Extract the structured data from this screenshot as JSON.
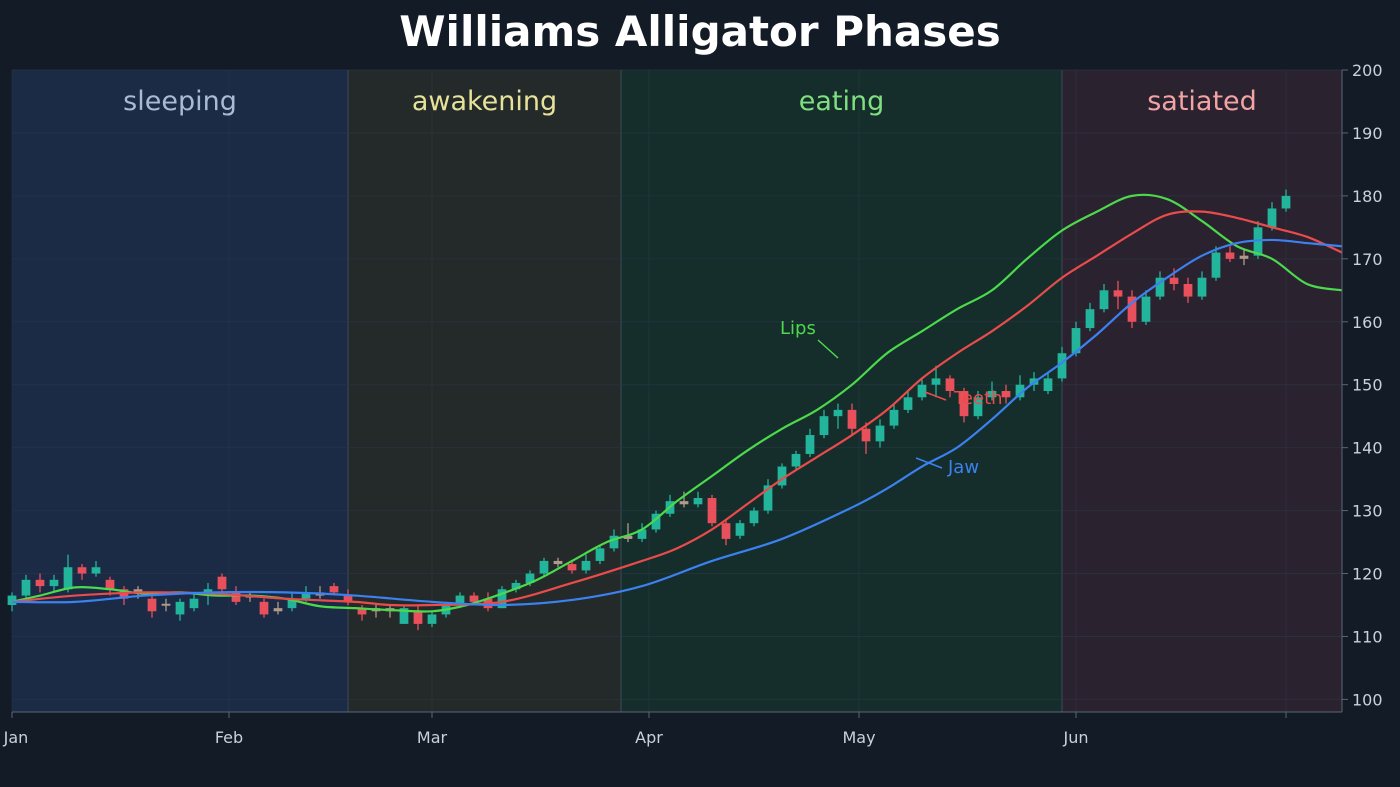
{
  "chart_data": {
    "type": "candlestick",
    "title": "Williams Alligator Phases",
    "xlabel": "",
    "ylabel": "",
    "ylim": [
      98,
      200
    ],
    "y_ticks": [
      100,
      110,
      120,
      130,
      140,
      150,
      160,
      170,
      180,
      190,
      200
    ],
    "x_range": [
      "2024-01-01",
      "2024-07-09"
    ],
    "x_ticks": [
      {
        "date": "2024-01-01",
        "label": "Jan"
      },
      {
        "date": "2024-02-01",
        "label": "Feb"
      },
      {
        "date": "2024-03-01",
        "label": "Mar"
      },
      {
        "date": "2024-04-01",
        "label": "Apr"
      },
      {
        "date": "2024-05-01",
        "label": "May"
      },
      {
        "date": "2024-06-01",
        "label": "Jun"
      },
      {
        "date": "2024-07-01",
        "label": ""
      }
    ],
    "grid": true,
    "phases": [
      {
        "label": "sleeping",
        "start": "2024-01-01",
        "end": "2024-02-18",
        "fill": "#1b2a45",
        "text_color": "#a9bad6"
      },
      {
        "label": "awakening",
        "start": "2024-02-18",
        "end": "2024-03-28",
        "fill": "#242a2a",
        "text_color": "#e6e29a"
      },
      {
        "label": "eating",
        "start": "2024-03-28",
        "end": "2024-05-30",
        "fill": "#152d2b",
        "text_color": "#7fe07f"
      },
      {
        "label": "satiated",
        "start": "2024-05-30",
        "end": "2024-07-09",
        "fill": "#2b2230",
        "text_color": "#f2a3a3"
      }
    ],
    "series": [
      {
        "name": "Lips",
        "color": "#4cd94c",
        "points": [
          [
            "2024-01-01",
            115.5
          ],
          [
            "2024-01-05",
            116.5
          ],
          [
            "2024-01-10",
            117.8
          ],
          [
            "2024-01-15",
            117.5
          ],
          [
            "2024-01-20",
            116.8
          ],
          [
            "2024-01-25",
            117.0
          ],
          [
            "2024-01-30",
            116.5
          ],
          [
            "2024-02-04",
            116.5
          ],
          [
            "2024-02-09",
            116.0
          ],
          [
            "2024-02-14",
            114.8
          ],
          [
            "2024-02-19",
            114.5
          ],
          [
            "2024-02-24",
            114.2
          ],
          [
            "2024-03-01",
            114.0
          ],
          [
            "2024-03-06",
            115.0
          ],
          [
            "2024-03-11",
            116.8
          ],
          [
            "2024-03-16",
            119.0
          ],
          [
            "2024-03-21",
            122.0
          ],
          [
            "2024-03-26",
            125.0
          ],
          [
            "2024-03-31",
            127.0
          ],
          [
            "2024-04-05",
            131.5
          ],
          [
            "2024-04-10",
            135.5
          ],
          [
            "2024-04-15",
            139.5
          ],
          [
            "2024-04-20",
            143.0
          ],
          [
            "2024-04-25",
            146.0
          ],
          [
            "2024-04-30",
            150.0
          ],
          [
            "2024-05-05",
            155.0
          ],
          [
            "2024-05-10",
            158.5
          ],
          [
            "2024-05-15",
            162.0
          ],
          [
            "2024-05-20",
            165.0
          ],
          [
            "2024-05-25",
            170.0
          ],
          [
            "2024-05-30",
            174.5
          ],
          [
            "2024-06-04",
            177.5
          ],
          [
            "2024-06-09",
            180.0
          ],
          [
            "2024-06-14",
            179.5
          ],
          [
            "2024-06-19",
            176.0
          ],
          [
            "2024-06-24",
            172.0
          ],
          [
            "2024-06-29",
            170.0
          ],
          [
            "2024-07-04",
            166.0
          ],
          [
            "2024-07-09",
            165.0
          ]
        ]
      },
      {
        "name": "Teeth",
        "color": "#ea4b4b",
        "points": [
          [
            "2024-01-01",
            115.5
          ],
          [
            "2024-01-10",
            116.5
          ],
          [
            "2024-01-20",
            117.0
          ],
          [
            "2024-01-30",
            116.8
          ],
          [
            "2024-02-09",
            116.0
          ],
          [
            "2024-02-19",
            115.5
          ],
          [
            "2024-02-24",
            115.0
          ],
          [
            "2024-03-01",
            115.0
          ],
          [
            "2024-03-11",
            115.5
          ],
          [
            "2024-03-21",
            118.5
          ],
          [
            "2024-03-31",
            122.0
          ],
          [
            "2024-04-05",
            124.0
          ],
          [
            "2024-04-10",
            127.0
          ],
          [
            "2024-04-15",
            131.0
          ],
          [
            "2024-04-20",
            135.0
          ],
          [
            "2024-04-25",
            138.5
          ],
          [
            "2024-04-30",
            142.0
          ],
          [
            "2024-05-05",
            146.0
          ],
          [
            "2024-05-10",
            151.0
          ],
          [
            "2024-05-15",
            155.0
          ],
          [
            "2024-05-20",
            158.5
          ],
          [
            "2024-05-25",
            162.5
          ],
          [
            "2024-05-30",
            167.0
          ],
          [
            "2024-06-04",
            170.5
          ],
          [
            "2024-06-09",
            174.0
          ],
          [
            "2024-06-14",
            177.0
          ],
          [
            "2024-06-19",
            177.5
          ],
          [
            "2024-06-24",
            176.5
          ],
          [
            "2024-06-29",
            175.0
          ],
          [
            "2024-07-04",
            173.5
          ],
          [
            "2024-07-09",
            171.0
          ]
        ]
      },
      {
        "name": "Jaw",
        "color": "#3b82f0",
        "points": [
          [
            "2024-01-01",
            115.5
          ],
          [
            "2024-01-10",
            115.5
          ],
          [
            "2024-01-20",
            116.5
          ],
          [
            "2024-01-30",
            117.0
          ],
          [
            "2024-02-09",
            117.0
          ],
          [
            "2024-02-19",
            116.5
          ],
          [
            "2024-03-01",
            115.5
          ],
          [
            "2024-03-11",
            115.0
          ],
          [
            "2024-03-21",
            115.8
          ],
          [
            "2024-03-31",
            118.0
          ],
          [
            "2024-04-10",
            122.0
          ],
          [
            "2024-04-20",
            125.5
          ],
          [
            "2024-04-30",
            130.5
          ],
          [
            "2024-05-05",
            133.5
          ],
          [
            "2024-05-10",
            137.0
          ],
          [
            "2024-05-15",
            140.0
          ],
          [
            "2024-05-20",
            144.5
          ],
          [
            "2024-05-25",
            149.5
          ],
          [
            "2024-05-30",
            153.5
          ],
          [
            "2024-06-04",
            158.0
          ],
          [
            "2024-06-09",
            163.0
          ],
          [
            "2024-06-14",
            167.0
          ],
          [
            "2024-06-19",
            170.5
          ],
          [
            "2024-06-24",
            172.5
          ],
          [
            "2024-06-29",
            173.0
          ],
          [
            "2024-07-04",
            172.5
          ],
          [
            "2024-07-09",
            172.0
          ]
        ]
      }
    ],
    "candles": [
      [
        "2024-01-01",
        115.0,
        116.5,
        114.0,
        117.0
      ],
      [
        "2024-01-03",
        116.5,
        119.0,
        115.8,
        119.8
      ],
      [
        "2024-01-05",
        119.0,
        118.0,
        117.0,
        120.0
      ],
      [
        "2024-01-07",
        118.0,
        119.0,
        117.0,
        119.8
      ],
      [
        "2024-01-09",
        117.5,
        121.0,
        117.0,
        123.0
      ],
      [
        "2024-01-11",
        121.0,
        120.0,
        119.0,
        121.5
      ],
      [
        "2024-01-13",
        120.0,
        121.0,
        119.5,
        122.0
      ],
      [
        "2024-01-15",
        119.0,
        117.5,
        116.5,
        119.5
      ],
      [
        "2024-01-17",
        117.5,
        116.0,
        115.0,
        118.0
      ],
      [
        "2024-01-19",
        117.0,
        117.5,
        116.0,
        118.0
      ],
      [
        "2024-01-21",
        116.0,
        114.0,
        113.0,
        117.0
      ],
      [
        "2024-01-23",
        115.0,
        115.2,
        114.0,
        116.0
      ],
      [
        "2024-01-25",
        113.5,
        115.5,
        112.5,
        116.0
      ],
      [
        "2024-01-27",
        114.5,
        116.0,
        114.0,
        117.0
      ],
      [
        "2024-01-29",
        116.5,
        117.5,
        115.0,
        118.5
      ],
      [
        "2024-01-31",
        119.5,
        117.5,
        117.0,
        120.0
      ],
      [
        "2024-02-02",
        117.0,
        115.5,
        115.0,
        118.0
      ],
      [
        "2024-02-04",
        116.5,
        116.5,
        115.5,
        117.0
      ],
      [
        "2024-02-06",
        115.5,
        113.5,
        113.0,
        116.0
      ],
      [
        "2024-02-08",
        114.0,
        114.5,
        113.5,
        115.5
      ],
      [
        "2024-02-10",
        114.5,
        116.0,
        114.0,
        117.0
      ],
      [
        "2024-02-12",
        116.0,
        117.0,
        115.5,
        118.0
      ],
      [
        "2024-02-14",
        117.0,
        116.5,
        116.0,
        118.0
      ],
      [
        "2024-02-16",
        118.0,
        117.0,
        116.5,
        118.5
      ],
      [
        "2024-02-18",
        116.5,
        115.5,
        115.0,
        117.5
      ],
      [
        "2024-02-20",
        114.5,
        113.5,
        112.5,
        115.0
      ],
      [
        "2024-02-22",
        114.0,
        114.5,
        113.0,
        115.0
      ],
      [
        "2024-02-24",
        114.5,
        114.0,
        113.0,
        115.0
      ],
      [
        "2024-02-26",
        112.0,
        114.5,
        112.0,
        115.0
      ],
      [
        "2024-02-28",
        114.0,
        112.0,
        111.0,
        115.0
      ],
      [
        "2024-03-01",
        112.0,
        113.5,
        111.5,
        114.0
      ],
      [
        "2024-03-03",
        113.5,
        115.0,
        113.0,
        115.5
      ],
      [
        "2024-03-05",
        115.0,
        116.5,
        114.5,
        117.0
      ],
      [
        "2024-03-07",
        116.5,
        115.5,
        115.0,
        117.0
      ],
      [
        "2024-03-09",
        116.0,
        114.5,
        114.0,
        117.0
      ],
      [
        "2024-03-11",
        114.5,
        117.5,
        114.5,
        118.0
      ],
      [
        "2024-03-13",
        117.5,
        118.5,
        117.0,
        119.0
      ],
      [
        "2024-03-15",
        118.5,
        120.0,
        118.0,
        120.5
      ],
      [
        "2024-03-17",
        120.0,
        122.0,
        119.5,
        122.5
      ],
      [
        "2024-03-19",
        122.0,
        121.5,
        121.0,
        122.5
      ],
      [
        "2024-03-21",
        121.5,
        120.5,
        120.0,
        122.0
      ],
      [
        "2024-03-23",
        120.5,
        122.0,
        120.0,
        123.0
      ],
      [
        "2024-03-25",
        122.0,
        124.0,
        121.5,
        124.5
      ],
      [
        "2024-03-27",
        124.0,
        126.0,
        123.5,
        127.0
      ],
      [
        "2024-03-29",
        126.0,
        125.5,
        125.0,
        128.0
      ],
      [
        "2024-03-31",
        125.5,
        127.0,
        125.0,
        128.0
      ],
      [
        "2024-04-02",
        127.0,
        129.5,
        126.5,
        130.0
      ],
      [
        "2024-04-04",
        129.5,
        131.5,
        129.0,
        132.5
      ],
      [
        "2024-04-06",
        131.5,
        131.0,
        130.5,
        133.0
      ],
      [
        "2024-04-08",
        131.0,
        132.0,
        130.5,
        133.0
      ],
      [
        "2024-04-10",
        132.0,
        128.0,
        127.5,
        132.5
      ],
      [
        "2024-04-12",
        128.0,
        125.5,
        124.5,
        128.5
      ],
      [
        "2024-04-14",
        126.0,
        128.0,
        125.5,
        128.5
      ],
      [
        "2024-04-16",
        128.0,
        130.0,
        127.5,
        130.5
      ],
      [
        "2024-04-18",
        130.0,
        134.0,
        129.5,
        135.0
      ],
      [
        "2024-04-20",
        134.0,
        137.0,
        133.5,
        137.5
      ],
      [
        "2024-04-22",
        137.0,
        139.0,
        136.5,
        139.5
      ],
      [
        "2024-04-24",
        139.0,
        142.0,
        138.5,
        143.0
      ],
      [
        "2024-04-26",
        142.0,
        145.0,
        141.5,
        146.0
      ],
      [
        "2024-04-28",
        145.0,
        146.0,
        143.0,
        147.0
      ],
      [
        "2024-04-30",
        146.0,
        143.0,
        142.0,
        147.0
      ],
      [
        "2024-05-02",
        143.0,
        141.0,
        139.0,
        144.0
      ],
      [
        "2024-05-04",
        141.0,
        143.5,
        140.0,
        144.5
      ],
      [
        "2024-05-06",
        143.5,
        146.0,
        143.0,
        147.0
      ],
      [
        "2024-05-08",
        146.0,
        148.0,
        145.5,
        149.0
      ],
      [
        "2024-05-10",
        148.0,
        150.0,
        147.5,
        151.0
      ],
      [
        "2024-05-12",
        150.0,
        151.0,
        148.0,
        153.0
      ],
      [
        "2024-05-14",
        151.0,
        149.0,
        148.0,
        151.5
      ],
      [
        "2024-05-16",
        149.0,
        145.0,
        144.0,
        149.5
      ],
      [
        "2024-05-18",
        145.0,
        148.0,
        144.5,
        149.0
      ],
      [
        "2024-05-20",
        148.0,
        149.0,
        147.5,
        150.5
      ],
      [
        "2024-05-22",
        149.0,
        148.0,
        147.0,
        150.0
      ],
      [
        "2024-05-24",
        148.0,
        150.0,
        147.5,
        151.5
      ],
      [
        "2024-05-26",
        150.0,
        151.0,
        149.0,
        152.0
      ],
      [
        "2024-05-28",
        149.0,
        151.0,
        148.5,
        152.0
      ],
      [
        "2024-05-30",
        151.0,
        155.0,
        150.5,
        156.0
      ],
      [
        "2024-06-01",
        155.0,
        159.0,
        154.5,
        160.0
      ],
      [
        "2024-06-03",
        159.0,
        162.0,
        158.5,
        163.0
      ],
      [
        "2024-06-05",
        162.0,
        165.0,
        161.5,
        166.0
      ],
      [
        "2024-06-07",
        165.0,
        164.0,
        162.0,
        166.5
      ],
      [
        "2024-06-09",
        164.0,
        160.0,
        159.0,
        165.0
      ],
      [
        "2024-06-11",
        160.0,
        164.0,
        159.5,
        165.0
      ],
      [
        "2024-06-13",
        164.0,
        167.0,
        163.5,
        168.0
      ],
      [
        "2024-06-15",
        167.0,
        166.0,
        165.0,
        168.5
      ],
      [
        "2024-06-17",
        166.0,
        164.0,
        163.0,
        167.0
      ],
      [
        "2024-06-19",
        164.0,
        167.0,
        163.5,
        168.0
      ],
      [
        "2024-06-21",
        167.0,
        171.0,
        166.5,
        172.0
      ],
      [
        "2024-06-23",
        171.0,
        170.0,
        169.5,
        172.0
      ],
      [
        "2024-06-25",
        170.0,
        170.5,
        169.0,
        171.5
      ],
      [
        "2024-06-27",
        170.5,
        175.0,
        170.0,
        176.0
      ],
      [
        "2024-06-29",
        175.0,
        178.0,
        174.5,
        179.0
      ],
      [
        "2024-07-01",
        178.0,
        180.0,
        177.5,
        181.0
      ]
    ],
    "annotations": [
      {
        "text": "Lips",
        "series": "Lips"
      },
      {
        "text": "Teeth",
        "series": "Teeth"
      },
      {
        "text": "Jaw",
        "series": "Jaw"
      }
    ],
    "colors": {
      "background": "#131b26",
      "plot_background": "#16202d",
      "grid": "#2b3747",
      "axis": "#5a6676",
      "up_candle": "#22b59b",
      "down_candle": "#e8505b",
      "doji_candle": "#b09a8a",
      "tick_label": "#c9d1dc",
      "title": "#ffffff"
    }
  }
}
